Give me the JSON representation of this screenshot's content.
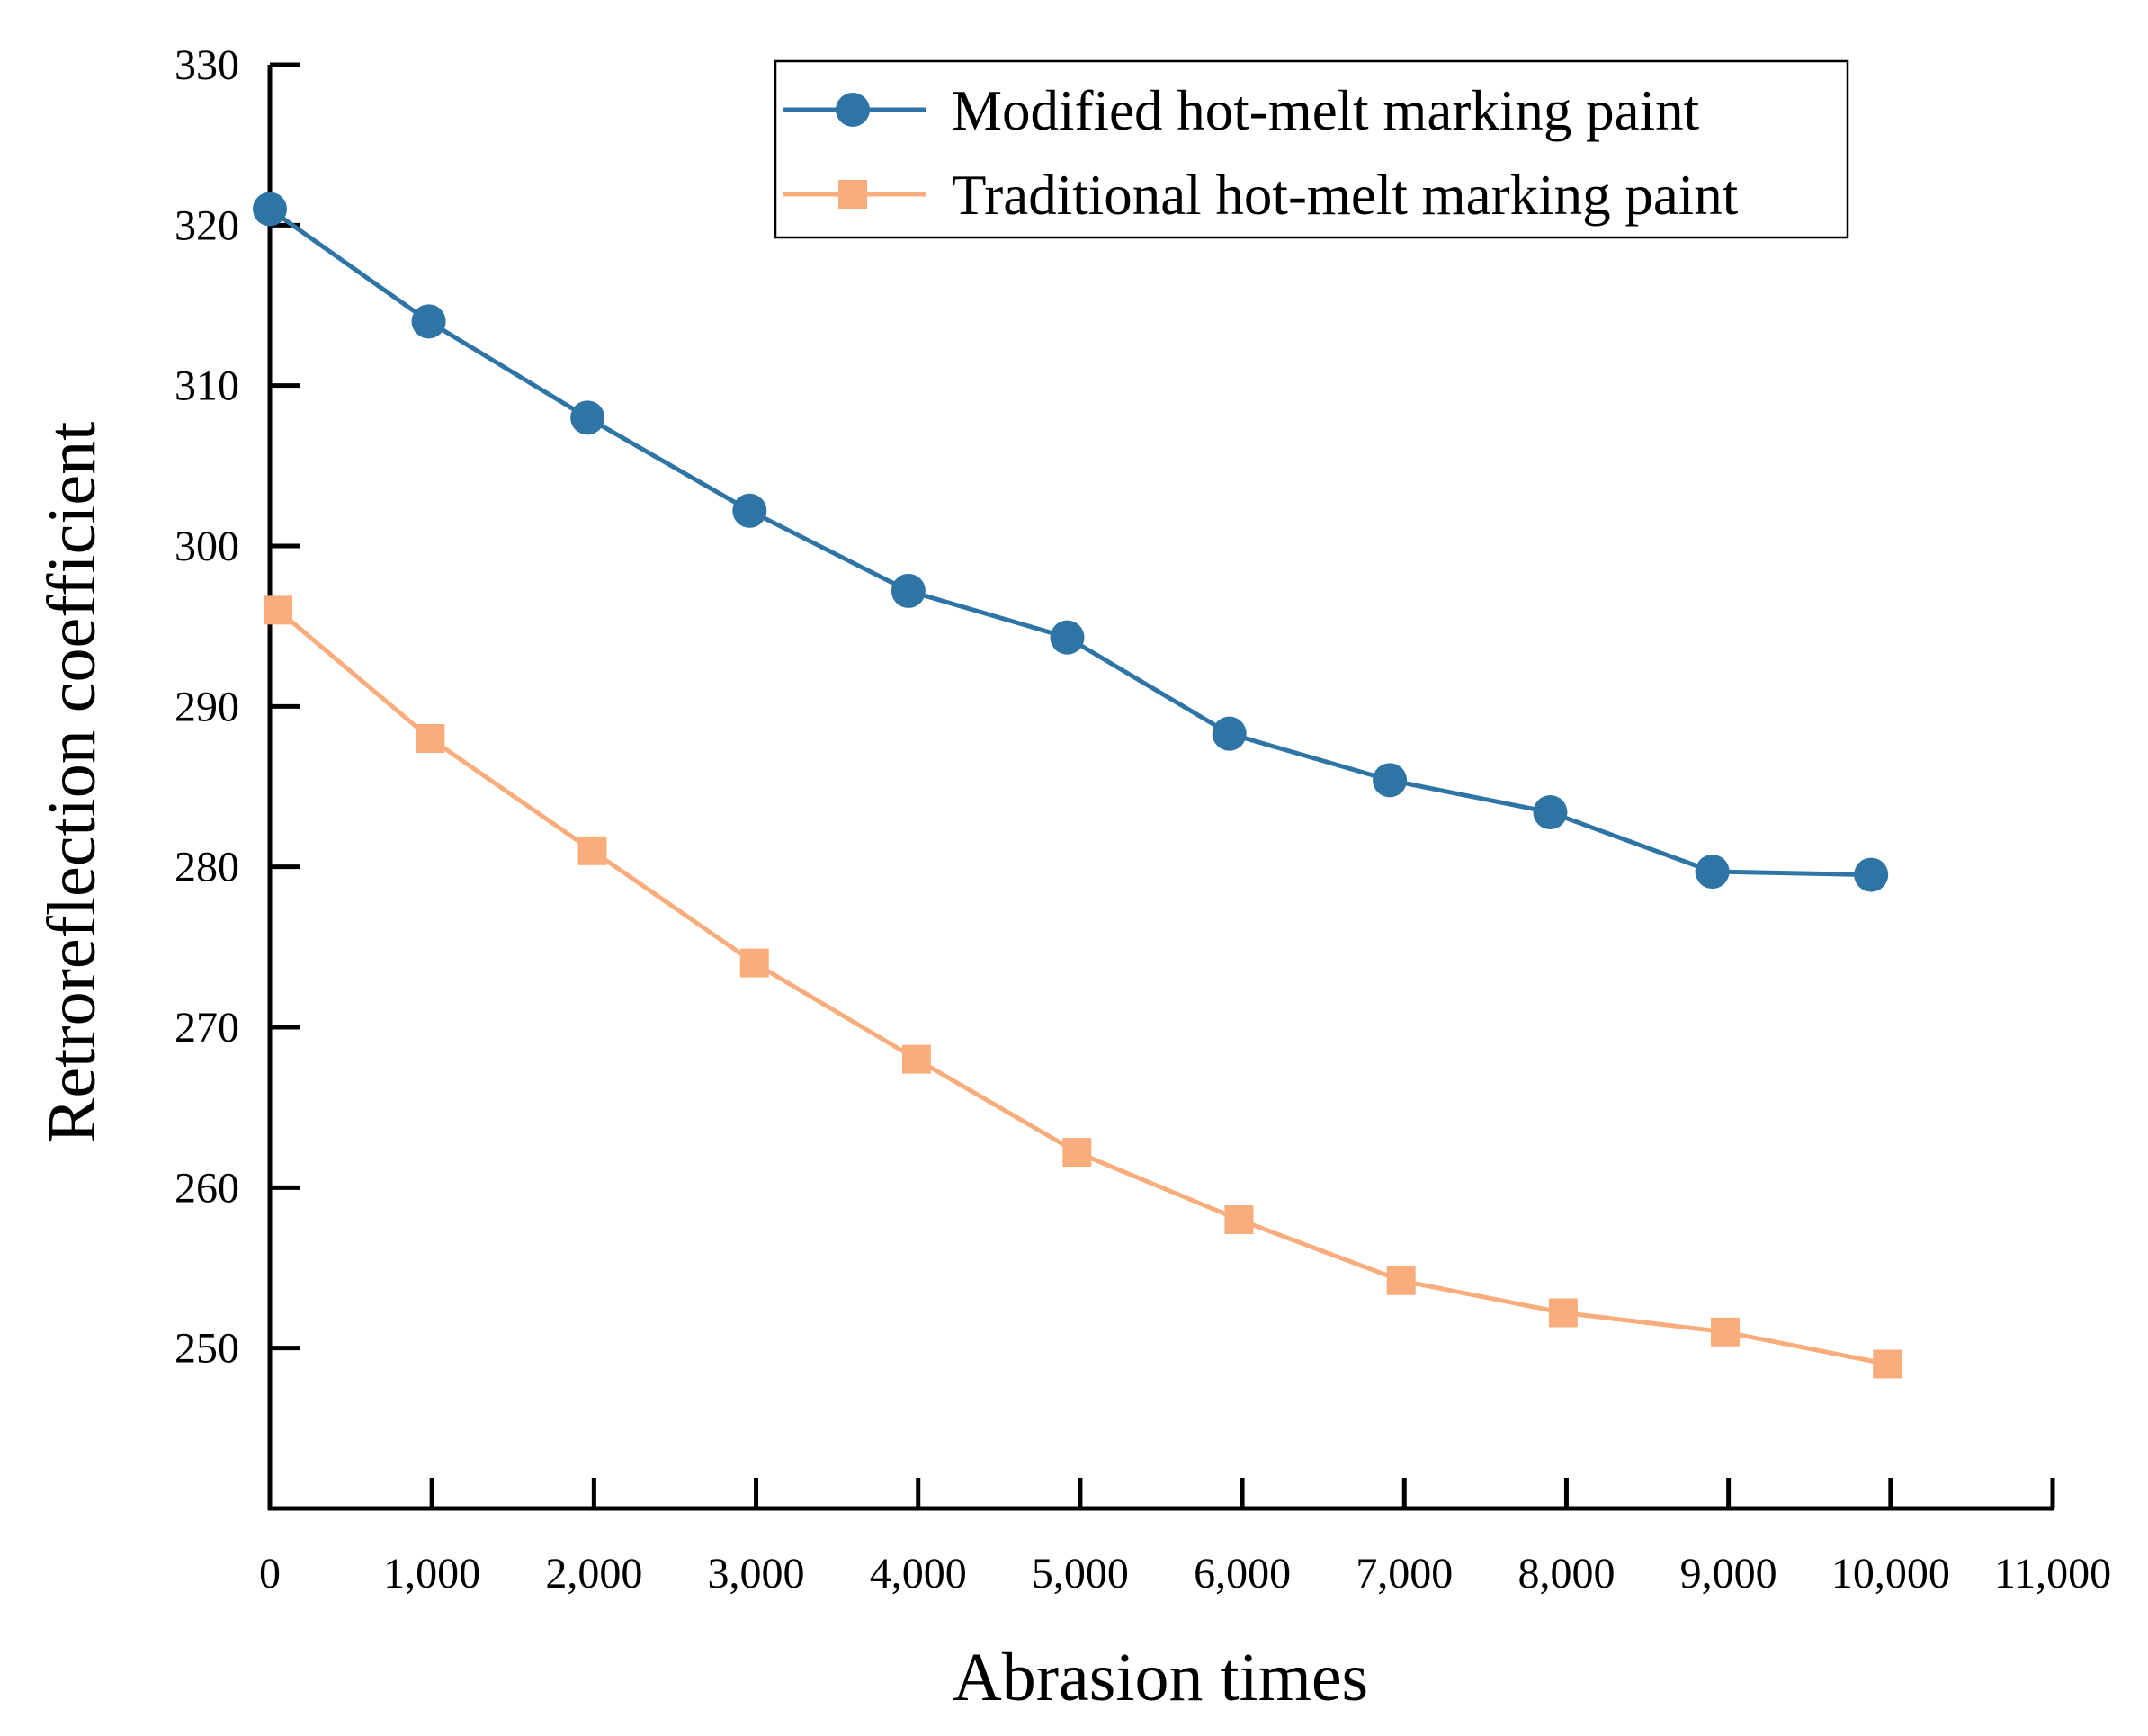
{
  "chart_data": {
    "type": "line",
    "title": "",
    "xlabel": "Abrasion times",
    "ylabel": "Retroreflection coefficient",
    "xlim": [
      0,
      11000
    ],
    "ylim": [
      240,
      330
    ],
    "x_ticks": [
      0,
      1000,
      2000,
      3000,
      4000,
      5000,
      6000,
      7000,
      8000,
      9000,
      10000,
      11000
    ],
    "x_tick_labels": [
      "0",
      "1,000",
      "2,000",
      "3,000",
      "4,000",
      "5,000",
      "6,000",
      "7,000",
      "8,000",
      "9,000",
      "10,000",
      "11,000"
    ],
    "y_ticks": [
      250,
      260,
      270,
      280,
      290,
      300,
      310,
      320,
      330
    ],
    "y_tick_labels": [
      "250",
      "260",
      "270",
      "280",
      "290",
      "300",
      "310",
      "320",
      "330"
    ],
    "grid": false,
    "legend_position": "top-right",
    "series": [
      {
        "name": "Modified hot-melt marking paint",
        "color": "#2e74a5",
        "marker": "circle",
        "x": [
          0,
          980,
          1960,
          2960,
          3940,
          4920,
          5920,
          6910,
          7900,
          8900,
          9880
        ],
        "y": [
          321,
          314,
          308,
          302.2,
          297.2,
          294.3,
          288.3,
          285.4,
          283.4,
          279.7,
          279.5
        ]
      },
      {
        "name": "Traditional hot-melt marking paint",
        "color": "#f9ad7c",
        "marker": "square",
        "x": [
          50,
          990,
          1990,
          2990,
          3990,
          4980,
          5980,
          6980,
          7980,
          8980,
          9980
        ],
        "y": [
          296,
          288,
          281,
          274,
          268,
          262.2,
          258,
          254.2,
          252.2,
          251,
          249
        ]
      }
    ]
  }
}
